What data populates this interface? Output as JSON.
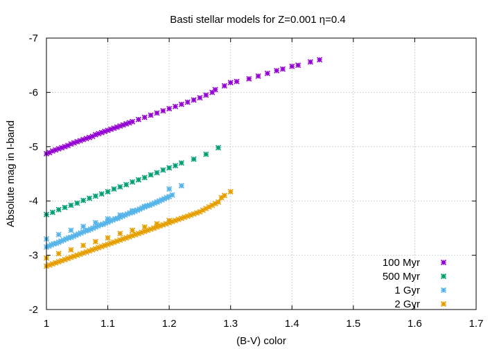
{
  "chart_data": {
    "type": "scatter",
    "title": "Basti stellar models for Z=0.001 η=0.4",
    "xlabel": "(B-V) color",
    "ylabel": "Absolute mag in I-band",
    "xlim": [
      1.0,
      1.7
    ],
    "ylim": [
      -2,
      -7
    ],
    "y_inverted": true,
    "xticks": [
      "1",
      "1.1",
      "1.2",
      "1.3",
      "1.4",
      "1.5",
      "1.6",
      "1.7"
    ],
    "xtick_values": [
      1.0,
      1.1,
      1.2,
      1.3,
      1.4,
      1.5,
      1.6,
      1.7
    ],
    "yticks": [
      "-2",
      "-3",
      "-4",
      "-5",
      "-6",
      "-7"
    ],
    "ytick_values": [
      -2,
      -3,
      -4,
      -5,
      -6,
      -7
    ],
    "grid": true,
    "legend_position": "bottom-right",
    "series": [
      {
        "name": "100 Myr",
        "color": "#9400d3",
        "marker": "star",
        "points": [
          [
            1.0,
            -4.87
          ],
          [
            1.005,
            -4.89
          ],
          [
            1.01,
            -4.92
          ],
          [
            1.015,
            -4.94
          ],
          [
            1.02,
            -4.96
          ],
          [
            1.025,
            -4.98
          ],
          [
            1.03,
            -5.0
          ],
          [
            1.035,
            -5.02
          ],
          [
            1.04,
            -5.05
          ],
          [
            1.045,
            -5.07
          ],
          [
            1.05,
            -5.09
          ],
          [
            1.055,
            -5.11
          ],
          [
            1.06,
            -5.13
          ],
          [
            1.065,
            -5.15
          ],
          [
            1.07,
            -5.17
          ],
          [
            1.075,
            -5.19
          ],
          [
            1.08,
            -5.22
          ],
          [
            1.085,
            -5.24
          ],
          [
            1.09,
            -5.26
          ],
          [
            1.095,
            -5.28
          ],
          [
            1.1,
            -5.3
          ],
          [
            1.105,
            -5.32
          ],
          [
            1.11,
            -5.34
          ],
          [
            1.115,
            -5.36
          ],
          [
            1.12,
            -5.38
          ],
          [
            1.125,
            -5.4
          ],
          [
            1.13,
            -5.42
          ],
          [
            1.135,
            -5.44
          ],
          [
            1.14,
            -5.46
          ],
          [
            1.15,
            -5.5
          ],
          [
            1.16,
            -5.54
          ],
          [
            1.17,
            -5.58
          ],
          [
            1.18,
            -5.62
          ],
          [
            1.19,
            -5.66
          ],
          [
            1.2,
            -5.7
          ],
          [
            1.21,
            -5.74
          ],
          [
            1.22,
            -5.78
          ],
          [
            1.23,
            -5.82
          ],
          [
            1.24,
            -5.86
          ],
          [
            1.25,
            -5.9
          ],
          [
            1.26,
            -5.95
          ],
          [
            1.27,
            -6.0
          ],
          [
            1.275,
            -6.05
          ],
          [
            1.29,
            -6.12
          ],
          [
            1.3,
            -6.18
          ],
          [
            1.31,
            -6.2
          ],
          [
            1.33,
            -6.25
          ],
          [
            1.345,
            -6.3
          ],
          [
            1.36,
            -6.35
          ],
          [
            1.375,
            -6.4
          ],
          [
            1.385,
            -6.43
          ],
          [
            1.4,
            -6.48
          ],
          [
            1.41,
            -6.5
          ],
          [
            1.43,
            -6.56
          ],
          [
            1.445,
            -6.6
          ]
        ]
      },
      {
        "name": "500 Myr",
        "color": "#009e73",
        "marker": "star",
        "points": [
          [
            1.0,
            -3.75
          ],
          [
            1.01,
            -3.79
          ],
          [
            1.02,
            -3.84
          ],
          [
            1.03,
            -3.88
          ],
          [
            1.04,
            -3.92
          ],
          [
            1.05,
            -3.96
          ],
          [
            1.06,
            -4.01
          ],
          [
            1.07,
            -4.05
          ],
          [
            1.08,
            -4.09
          ],
          [
            1.09,
            -4.13
          ],
          [
            1.1,
            -4.17
          ],
          [
            1.11,
            -4.22
          ],
          [
            1.12,
            -4.26
          ],
          [
            1.13,
            -4.3
          ],
          [
            1.14,
            -4.35
          ],
          [
            1.15,
            -4.39
          ],
          [
            1.16,
            -4.43
          ],
          [
            1.17,
            -4.48
          ],
          [
            1.18,
            -4.52
          ],
          [
            1.19,
            -4.57
          ],
          [
            1.2,
            -4.61
          ],
          [
            1.21,
            -4.65
          ],
          [
            1.22,
            -4.7
          ],
          [
            1.24,
            -4.77
          ],
          [
            1.26,
            -4.86
          ],
          [
            1.28,
            -4.98
          ]
        ]
      },
      {
        "name": "1 Gyr",
        "color": "#56b4e9",
        "marker": "star",
        "points": [
          [
            1.0,
            -3.15
          ],
          [
            1.004,
            -3.17
          ],
          [
            1.008,
            -3.19
          ],
          [
            1.012,
            -3.21
          ],
          [
            1.016,
            -3.22
          ],
          [
            1.02,
            -3.24
          ],
          [
            1.024,
            -3.26
          ],
          [
            1.028,
            -3.28
          ],
          [
            1.032,
            -3.3
          ],
          [
            1.036,
            -3.32
          ],
          [
            1.04,
            -3.33
          ],
          [
            1.044,
            -3.35
          ],
          [
            1.048,
            -3.37
          ],
          [
            1.052,
            -3.39
          ],
          [
            1.056,
            -3.41
          ],
          [
            1.06,
            -3.43
          ],
          [
            1.064,
            -3.45
          ],
          [
            1.068,
            -3.46
          ],
          [
            1.072,
            -3.48
          ],
          [
            1.076,
            -3.5
          ],
          [
            1.08,
            -3.52
          ],
          [
            1.084,
            -3.54
          ],
          [
            1.088,
            -3.56
          ],
          [
            1.092,
            -3.57
          ],
          [
            1.096,
            -3.59
          ],
          [
            1.1,
            -3.61
          ],
          [
            1.104,
            -3.63
          ],
          [
            1.108,
            -3.65
          ],
          [
            1.112,
            -3.67
          ],
          [
            1.116,
            -3.68
          ],
          [
            1.12,
            -3.7
          ],
          [
            1.124,
            -3.72
          ],
          [
            1.128,
            -3.74
          ],
          [
            1.132,
            -3.76
          ],
          [
            1.136,
            -3.78
          ],
          [
            1.14,
            -3.79
          ],
          [
            1.144,
            -3.81
          ],
          [
            1.148,
            -3.83
          ],
          [
            1.152,
            -3.85
          ],
          [
            1.156,
            -3.87
          ],
          [
            1.16,
            -3.89
          ],
          [
            1.164,
            -3.91
          ],
          [
            1.168,
            -3.92
          ],
          [
            1.172,
            -3.94
          ],
          [
            1.176,
            -3.96
          ],
          [
            1.18,
            -3.98
          ],
          [
            1.184,
            -4.0
          ],
          [
            1.188,
            -4.02
          ],
          [
            1.192,
            -4.04
          ],
          [
            1.196,
            -4.06
          ],
          [
            1.2,
            -4.08
          ],
          [
            1.205,
            -4.11
          ],
          [
            1.0,
            -3.3
          ],
          [
            1.02,
            -3.38
          ],
          [
            1.04,
            -3.46
          ],
          [
            1.06,
            -3.53
          ],
          [
            1.08,
            -3.6
          ],
          [
            1.1,
            -3.67
          ],
          [
            1.12,
            -3.74
          ],
          [
            1.14,
            -3.82
          ],
          [
            1.16,
            -3.9
          ],
          [
            1.18,
            -3.98
          ],
          [
            1.2,
            -4.22
          ],
          [
            1.22,
            -4.28
          ]
        ]
      },
      {
        "name": "2 Gyr",
        "color": "#e69f00",
        "marker": "star",
        "points": [
          [
            1.0,
            -2.8
          ],
          [
            1.005,
            -2.82
          ],
          [
            1.01,
            -2.84
          ],
          [
            1.015,
            -2.86
          ],
          [
            1.02,
            -2.88
          ],
          [
            1.025,
            -2.9
          ],
          [
            1.03,
            -2.92
          ],
          [
            1.035,
            -2.94
          ],
          [
            1.04,
            -2.96
          ],
          [
            1.045,
            -2.98
          ],
          [
            1.05,
            -3.0
          ],
          [
            1.055,
            -3.02
          ],
          [
            1.06,
            -3.04
          ],
          [
            1.065,
            -3.06
          ],
          [
            1.07,
            -3.08
          ],
          [
            1.075,
            -3.1
          ],
          [
            1.08,
            -3.12
          ],
          [
            1.085,
            -3.14
          ],
          [
            1.09,
            -3.16
          ],
          [
            1.095,
            -3.18
          ],
          [
            1.1,
            -3.2
          ],
          [
            1.105,
            -3.22
          ],
          [
            1.11,
            -3.24
          ],
          [
            1.115,
            -3.26
          ],
          [
            1.12,
            -3.28
          ],
          [
            1.125,
            -3.3
          ],
          [
            1.13,
            -3.32
          ],
          [
            1.135,
            -3.34
          ],
          [
            1.14,
            -3.36
          ],
          [
            1.145,
            -3.38
          ],
          [
            1.15,
            -3.4
          ],
          [
            1.155,
            -3.42
          ],
          [
            1.16,
            -3.44
          ],
          [
            1.165,
            -3.46
          ],
          [
            1.17,
            -3.48
          ],
          [
            1.175,
            -3.5
          ],
          [
            1.18,
            -3.52
          ],
          [
            1.185,
            -3.54
          ],
          [
            1.19,
            -3.56
          ],
          [
            1.195,
            -3.58
          ],
          [
            1.2,
            -3.6
          ],
          [
            1.205,
            -3.62
          ],
          [
            1.21,
            -3.64
          ],
          [
            1.215,
            -3.66
          ],
          [
            1.22,
            -3.68
          ],
          [
            1.225,
            -3.7
          ],
          [
            1.23,
            -3.72
          ],
          [
            1.235,
            -3.74
          ],
          [
            1.24,
            -3.76
          ],
          [
            1.245,
            -3.78
          ],
          [
            1.25,
            -3.8
          ],
          [
            1.255,
            -3.83
          ],
          [
            1.26,
            -3.86
          ],
          [
            1.265,
            -3.89
          ],
          [
            1.27,
            -3.92
          ],
          [
            1.275,
            -3.95
          ],
          [
            1.28,
            -3.98
          ],
          [
            1.285,
            -4.06
          ],
          [
            1.29,
            -4.1
          ],
          [
            1.3,
            -4.17
          ],
          [
            1.0,
            -2.95
          ],
          [
            1.02,
            -3.03
          ],
          [
            1.04,
            -3.1
          ],
          [
            1.06,
            -3.18
          ],
          [
            1.08,
            -3.25
          ],
          [
            1.1,
            -3.32
          ],
          [
            1.12,
            -3.4
          ],
          [
            1.14,
            -3.46
          ],
          [
            1.16,
            -3.52
          ],
          [
            1.18,
            -3.58
          ],
          [
            1.2,
            -3.64
          ]
        ]
      }
    ]
  }
}
